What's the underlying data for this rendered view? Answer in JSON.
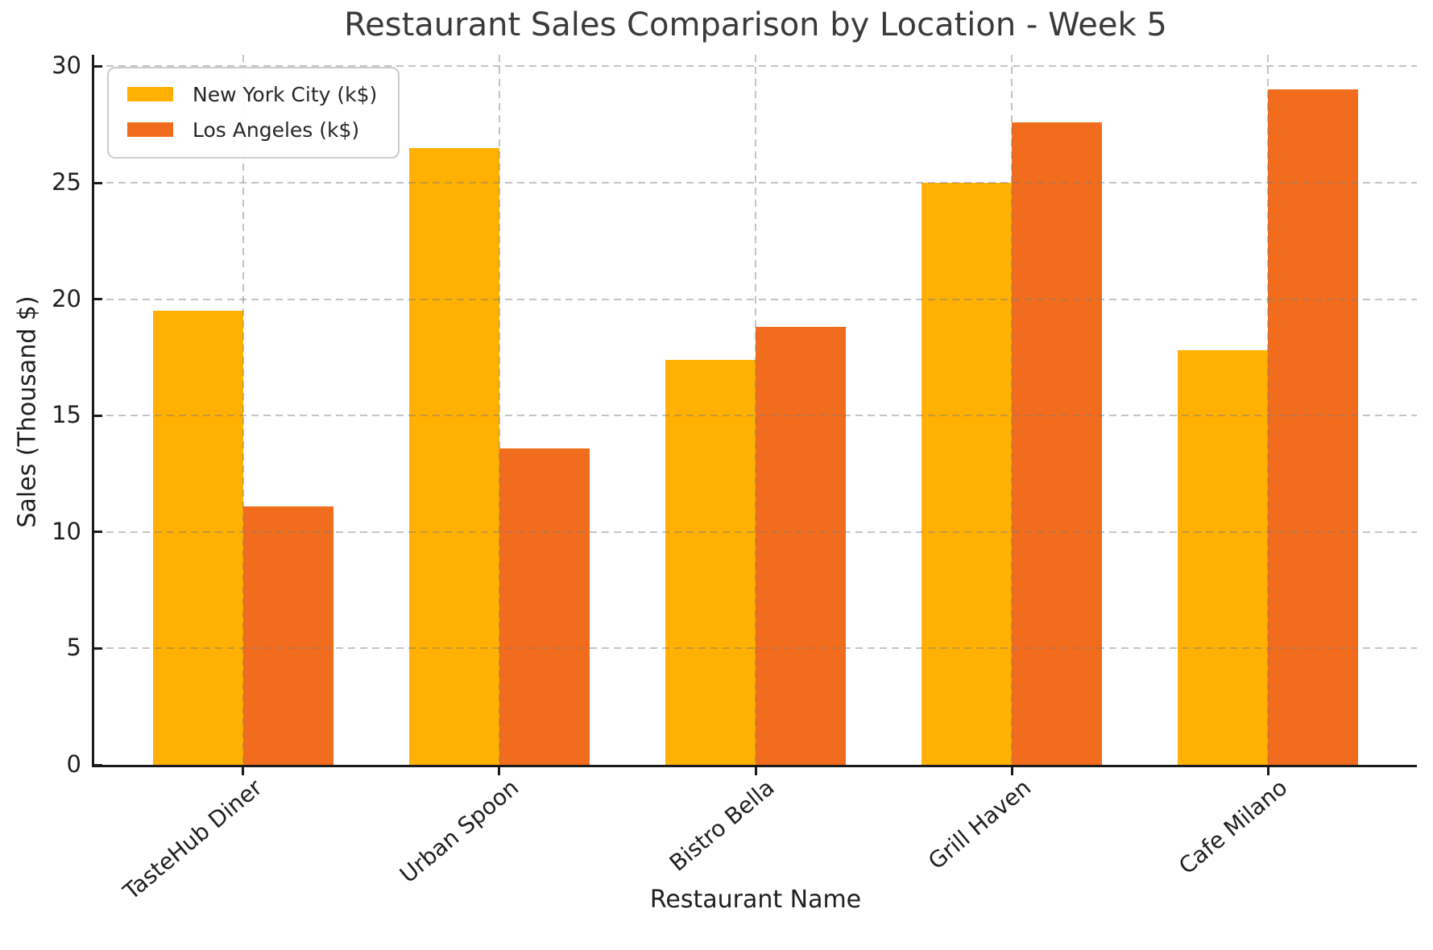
{
  "chart_data": {
    "type": "bar",
    "title": "Restaurant Sales Comparison by Location - Week 5",
    "xlabel": "Restaurant Name",
    "ylabel": "Sales (Thousand $)",
    "categories": [
      "TasteHub Diner",
      "Urban Spoon",
      "Bistro Bella",
      "Grill Haven",
      "Cafe Milano"
    ],
    "series": [
      {
        "name": "New York City (k$)",
        "color": "#FFB000",
        "values": [
          19.5,
          26.5,
          17.4,
          25.0,
          17.8
        ]
      },
      {
        "name": "Los Angeles (k$)",
        "color": "#F26C1E",
        "values": [
          11.1,
          13.6,
          18.8,
          27.6,
          29.0
        ]
      }
    ],
    "yticks": [
      0,
      5,
      10,
      15,
      20,
      25,
      30
    ],
    "ylim": [
      0,
      30.5
    ],
    "grid": true,
    "grid_style": "dashed",
    "legend_position": "upper left",
    "x_tick_rotation": -40
  }
}
